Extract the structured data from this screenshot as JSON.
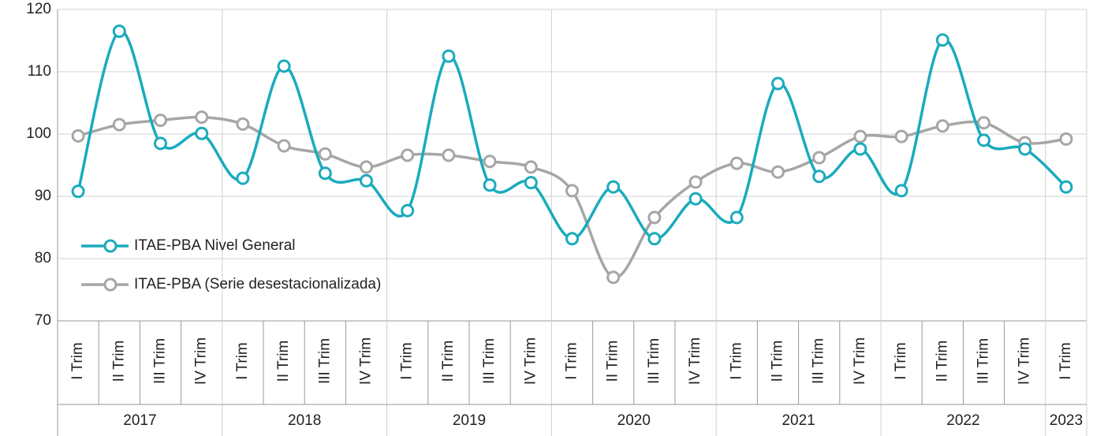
{
  "chart_data": {
    "type": "line",
    "categories": [
      "I Trim",
      "II Trim",
      "III Trim",
      "IV Trim",
      "I Trim",
      "II Trim",
      "III Trim",
      "IV Trim",
      "I Trim",
      "II Trim",
      "III Trim",
      "IV Trim",
      "I Trim",
      "II Trim",
      "III Trim",
      "IV Trim",
      "I Trim",
      "II Trim",
      "III Trim",
      "IV Trim",
      "I Trim",
      "II Trim",
      "III Trim",
      "IV Trim",
      "I Trim"
    ],
    "years": [
      "2017",
      null,
      null,
      null,
      "2018",
      null,
      null,
      null,
      "2019",
      null,
      null,
      null,
      "2020",
      null,
      null,
      null,
      "2021",
      null,
      null,
      null,
      "2022",
      null,
      null,
      null,
      "2023"
    ],
    "series": [
      {
        "name": "ITAE-PBA Nivel General",
        "color": "#1aabbd",
        "values": [
          90.8,
          116.5,
          98.5,
          100.1,
          92.9,
          110.9,
          93.7,
          92.5,
          87.7,
          112.5,
          91.8,
          92.2,
          83.2,
          91.5,
          83.2,
          89.6,
          86.6,
          108.1,
          93.2,
          97.6,
          90.9,
          115.1,
          99.0,
          97.6,
          91.5
        ]
      },
      {
        "name": "ITAE-PBA (Serie desestacionalizada)",
        "color": "#a6a6a6",
        "values": [
          99.7,
          101.5,
          102.2,
          102.7,
          101.6,
          98.1,
          96.8,
          94.7,
          96.6,
          96.6,
          95.6,
          94.7,
          90.9,
          77.0,
          86.6,
          92.3,
          95.3,
          93.9,
          96.2,
          99.6,
          99.6,
          101.3,
          101.8,
          98.6,
          99.2
        ]
      }
    ],
    "ylim": [
      70,
      120
    ],
    "yticks": [
      70,
      80,
      90,
      100,
      110,
      120
    ],
    "grid": true,
    "legend": "lower left"
  }
}
